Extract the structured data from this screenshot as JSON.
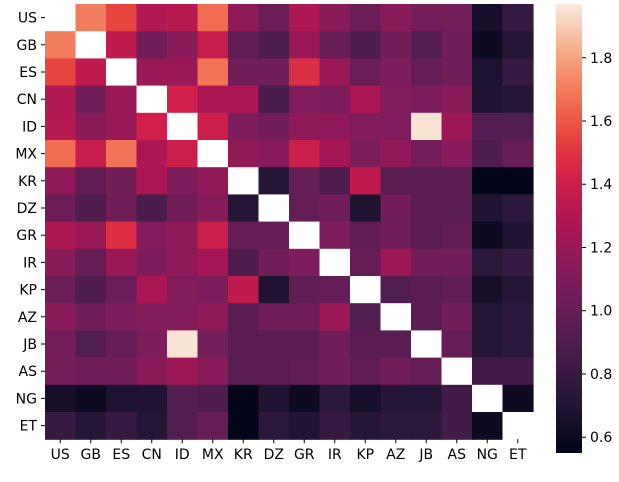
{
  "chart_data": {
    "type": "heatmap",
    "labels": [
      "US",
      "GB",
      "ES",
      "CN",
      "ID",
      "MX",
      "KR",
      "DZ",
      "GR",
      "IR",
      "KP",
      "AZ",
      "JB",
      "AS",
      "NG",
      "ET"
    ],
    "values": [
      [
        null,
        1.7,
        1.55,
        1.3,
        1.32,
        1.66,
        1.17,
        1.03,
        1.28,
        1.15,
        1.02,
        1.15,
        1.07,
        1.06,
        0.65,
        0.8
      ],
      [
        1.7,
        2.0,
        1.35,
        1.05,
        1.15,
        1.38,
        0.98,
        0.9,
        1.2,
        1.0,
        0.9,
        1.05,
        0.92,
        1.05,
        0.6,
        0.72
      ],
      [
        1.55,
        1.35,
        2.0,
        1.2,
        1.2,
        1.68,
        1.05,
        1.05,
        1.48,
        1.2,
        1.02,
        1.1,
        1.0,
        1.05,
        0.68,
        0.8
      ],
      [
        1.3,
        1.05,
        1.2,
        2.0,
        1.42,
        1.27,
        1.27,
        0.88,
        1.12,
        1.1,
        1.27,
        1.12,
        1.1,
        1.15,
        0.7,
        0.72
      ],
      [
        1.32,
        1.15,
        1.2,
        1.42,
        2.0,
        1.4,
        1.1,
        1.05,
        1.17,
        1.17,
        1.12,
        1.12,
        1.95,
        1.22,
        0.92,
        0.92
      ],
      [
        1.66,
        1.38,
        1.68,
        1.27,
        1.4,
        2.0,
        1.18,
        1.14,
        1.39,
        1.25,
        1.1,
        1.18,
        1.06,
        1.14,
        0.9,
        1.0
      ],
      [
        1.17,
        0.98,
        1.05,
        1.27,
        1.1,
        1.18,
        2.0,
        0.72,
        1.0,
        0.9,
        1.35,
        0.95,
        0.95,
        0.95,
        0.55,
        0.55
      ],
      [
        1.03,
        0.9,
        1.05,
        0.88,
        1.05,
        1.14,
        0.72,
        2.0,
        1.0,
        1.05,
        0.7,
        1.05,
        0.95,
        0.95,
        0.7,
        0.75
      ],
      [
        1.28,
        1.2,
        1.48,
        1.12,
        1.17,
        1.39,
        1.0,
        1.0,
        2.0,
        1.1,
        0.98,
        1.05,
        0.95,
        0.98,
        0.6,
        0.7
      ],
      [
        1.15,
        1.0,
        1.2,
        1.1,
        1.17,
        1.25,
        0.9,
        1.05,
        1.1,
        2.0,
        1.0,
        1.22,
        1.05,
        1.05,
        0.75,
        0.8
      ],
      [
        1.02,
        0.9,
        1.02,
        1.27,
        1.12,
        1.1,
        1.35,
        0.7,
        0.98,
        1.0,
        2.0,
        0.92,
        0.95,
        0.98,
        0.65,
        0.72
      ],
      [
        1.15,
        1.05,
        1.1,
        1.12,
        1.12,
        1.18,
        0.95,
        1.05,
        1.05,
        1.22,
        0.92,
        2.0,
        0.95,
        1.05,
        0.72,
        0.75
      ],
      [
        1.07,
        0.92,
        1.0,
        1.1,
        1.95,
        1.06,
        0.95,
        0.95,
        0.95,
        1.05,
        0.95,
        0.95,
        2.0,
        1.0,
        0.72,
        0.75
      ],
      [
        1.06,
        1.05,
        1.05,
        1.15,
        1.22,
        1.14,
        0.95,
        0.95,
        0.98,
        1.05,
        0.98,
        1.05,
        1.0,
        2.0,
        0.85,
        0.85
      ],
      [
        0.65,
        0.6,
        0.68,
        0.7,
        0.92,
        0.9,
        0.55,
        0.7,
        0.6,
        0.75,
        0.65,
        0.72,
        0.72,
        0.85,
        2.0,
        0.6
      ],
      [
        0.8,
        0.72,
        0.8,
        0.72,
        0.92,
        1.0,
        0.55,
        0.75,
        0.7,
        0.8,
        0.72,
        0.75,
        0.75,
        0.85,
        0.6,
        null
      ]
    ],
    "colorbar": {
      "min": 0.55,
      "max": 1.97,
      "ticks": [
        0.6,
        0.8,
        1.0,
        1.2,
        1.4,
        1.6,
        1.8
      ]
    },
    "colormap": "rocket",
    "title": "",
    "xlabel": "",
    "ylabel": ""
  }
}
